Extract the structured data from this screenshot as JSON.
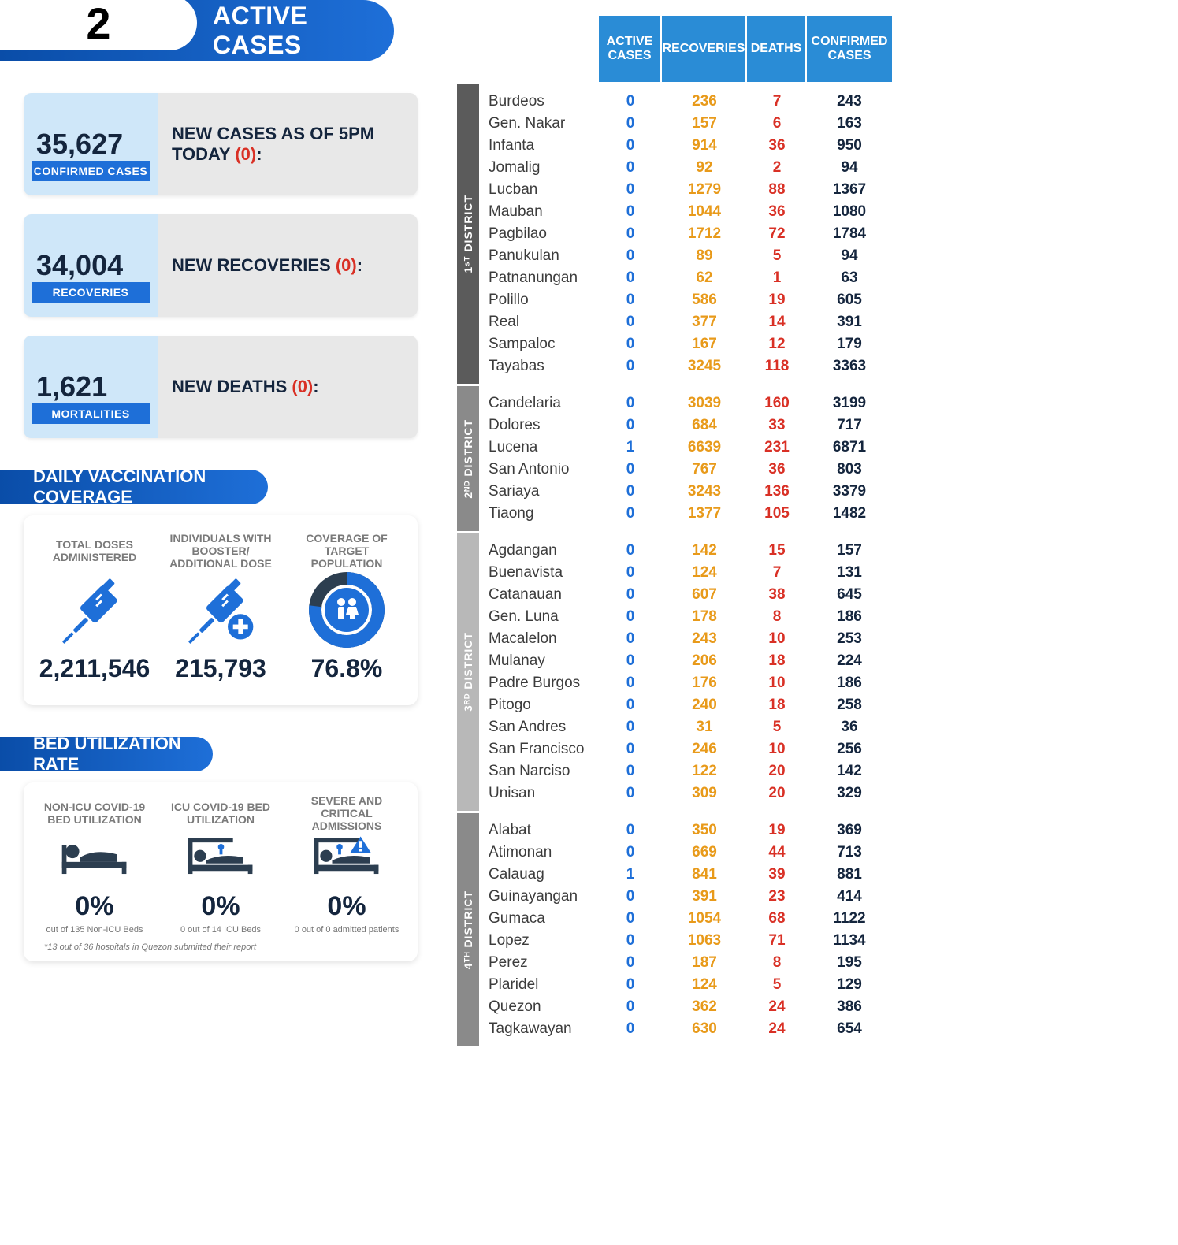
{
  "header": {
    "number": "2",
    "label": "ACTIVE CASES"
  },
  "stats": {
    "confirmed": {
      "value": "35,627",
      "badge": "CONFIRMED CASES",
      "desc_prefix": "NEW CASES AS OF 5PM TODAY ",
      "desc_red": "(0)",
      "desc_suffix": ":"
    },
    "recoveries": {
      "value": "34,004",
      "badge": "RECOVERIES",
      "desc_prefix": "NEW RECOVERIES ",
      "desc_red": "(0)",
      "desc_suffix": ":"
    },
    "mortalities": {
      "value": "1,621",
      "badge": "MORTALITIES",
      "desc_prefix": "NEW DEATHS ",
      "desc_red": "(0)",
      "desc_suffix": ":"
    }
  },
  "vax": {
    "heading": "DAILY VACCINATION COVERAGE",
    "items": [
      {
        "title": "TOTAL DOSES ADMINISTERED",
        "value": "2,211,546"
      },
      {
        "title": "INDIVIDUALS WITH BOOSTER/ ADDITIONAL DOSE",
        "value": "215,793"
      },
      {
        "title": "COVERAGE OF TARGET POPULATION",
        "value": "76.8%"
      }
    ]
  },
  "bed": {
    "heading": "BED UTILIZATION RATE",
    "items": [
      {
        "title": "NON-ICU COVID-19 BED UTILIZATION",
        "value": "0%",
        "sub": "out of 135 Non-ICU Beds"
      },
      {
        "title": "ICU COVID-19 BED UTILIZATION",
        "value": "0%",
        "sub": "0 out of 14 ICU Beds"
      },
      {
        "title": "SEVERE AND CRITICAL ADMISSIONS",
        "value": "0%",
        "sub": "0 out of 0 admitted patients"
      }
    ],
    "footnote": "*13 out of 36 hospitals in Quezon submitted their report"
  },
  "table": {
    "headers": [
      "ACTIVE CASES",
      "RECOVERIES",
      "DEATHS",
      "CONFIRMED CASES"
    ],
    "districts": [
      {
        "name": "1ˢᵀ DISTRICT",
        "color": "sep1",
        "rows": [
          [
            "Burdeos",
            "0",
            "236",
            "7",
            "243"
          ],
          [
            "Gen. Nakar",
            "0",
            "157",
            "6",
            "163"
          ],
          [
            "Infanta",
            "0",
            "914",
            "36",
            "950"
          ],
          [
            "Jomalig",
            "0",
            "92",
            "2",
            "94"
          ],
          [
            "Lucban",
            "0",
            "1279",
            "88",
            "1367"
          ],
          [
            "Mauban",
            "0",
            "1044",
            "36",
            "1080"
          ],
          [
            "Pagbilao",
            "0",
            "1712",
            "72",
            "1784"
          ],
          [
            "Panukulan",
            "0",
            "89",
            "5",
            "94"
          ],
          [
            "Patnanungan",
            "0",
            "62",
            "1",
            "63"
          ],
          [
            "Polillo",
            "0",
            "586",
            "19",
            "605"
          ],
          [
            "Real",
            "0",
            "377",
            "14",
            "391"
          ],
          [
            "Sampaloc",
            "0",
            "167",
            "12",
            "179"
          ],
          [
            "Tayabas",
            "0",
            "3245",
            "118",
            "3363"
          ]
        ]
      },
      {
        "name": "2ᴺᴰ DISTRICT",
        "color": "sep2",
        "rows": [
          [
            "Candelaria",
            "0",
            "3039",
            "160",
            "3199"
          ],
          [
            "Dolores",
            "0",
            "684",
            "33",
            "717"
          ],
          [
            "Lucena",
            "1",
            "6639",
            "231",
            "6871"
          ],
          [
            "San Antonio",
            "0",
            "767",
            "36",
            "803"
          ],
          [
            "Sariaya",
            "0",
            "3243",
            "136",
            "3379"
          ],
          [
            "Tiaong",
            "0",
            "1377",
            "105",
            "1482"
          ]
        ]
      },
      {
        "name": "3ᴿᴰ DISTRICT",
        "color": "sep3",
        "rows": [
          [
            "Agdangan",
            "0",
            "142",
            "15",
            "157"
          ],
          [
            "Buenavista",
            "0",
            "124",
            "7",
            "131"
          ],
          [
            "Catanauan",
            "0",
            "607",
            "38",
            "645"
          ],
          [
            "Gen. Luna",
            "0",
            "178",
            "8",
            "186"
          ],
          [
            "Macalelon",
            "0",
            "243",
            "10",
            "253"
          ],
          [
            "Mulanay",
            "0",
            "206",
            "18",
            "224"
          ],
          [
            "Padre Burgos",
            "0",
            "176",
            "10",
            "186"
          ],
          [
            "Pitogo",
            "0",
            "240",
            "18",
            "258"
          ],
          [
            "San Andres",
            "0",
            "31",
            "5",
            "36"
          ],
          [
            "San Francisco",
            "0",
            "246",
            "10",
            "256"
          ],
          [
            "San Narciso",
            "0",
            "122",
            "20",
            "142"
          ],
          [
            "Unisan",
            "0",
            "309",
            "20",
            "329"
          ]
        ]
      },
      {
        "name": "4ᵀᴴ DISTRICT",
        "color": "sep4",
        "rows": [
          [
            "Alabat",
            "0",
            "350",
            "19",
            "369"
          ],
          [
            "Atimonan",
            "0",
            "669",
            "44",
            "713"
          ],
          [
            "Calauag",
            "1",
            "841",
            "39",
            "881"
          ],
          [
            "Guinayangan",
            "0",
            "391",
            "23",
            "414"
          ],
          [
            "Gumaca",
            "0",
            "1054",
            "68",
            "1122"
          ],
          [
            "Lopez",
            "0",
            "1063",
            "71",
            "1134"
          ],
          [
            "Perez",
            "0",
            "187",
            "8",
            "195"
          ],
          [
            "Plaridel",
            "0",
            "124",
            "5",
            "129"
          ],
          [
            "Quezon",
            "0",
            "362",
            "24",
            "386"
          ],
          [
            "Tagkawayan",
            "0",
            "630",
            "24",
            "654"
          ]
        ]
      }
    ]
  },
  "colors": {
    "blue_gradient_start": "#0a4da8",
    "blue_gradient_end": "#1e6fd8",
    "light_blue": "#cfe7f9",
    "header_blue": "#2a8cd6",
    "grey_bg": "#e8e8e8",
    "text_dark": "#14253d",
    "orange": "#e89a1a",
    "red": "#d93025"
  }
}
